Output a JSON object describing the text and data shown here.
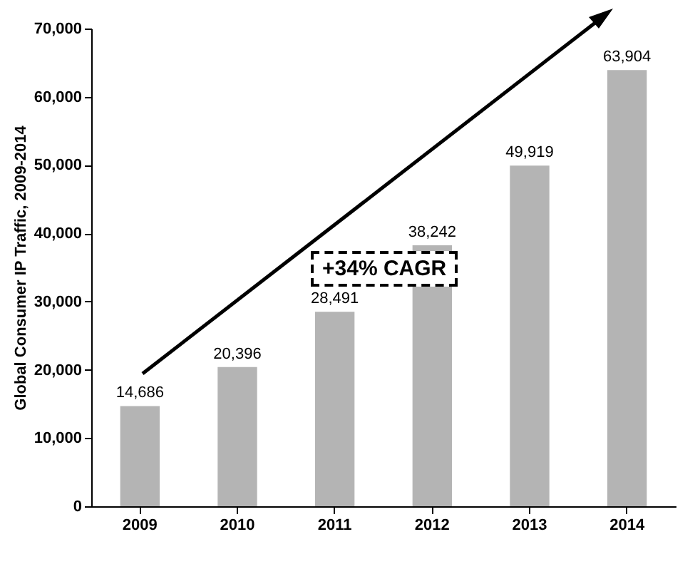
{
  "chart_data": {
    "type": "bar",
    "ylabel": "Global Consumer IP Traffic, 2009-2014",
    "categories": [
      "2009",
      "2010",
      "2011",
      "2012",
      "2013",
      "2014"
    ],
    "values": [
      14686,
      20396,
      28491,
      38242,
      49919,
      63904
    ],
    "color": "#b4b4b4",
    "ylim": [
      0,
      70000
    ],
    "yticks": [
      {
        "value": 0,
        "label": "0"
      },
      {
        "value": 10000,
        "label": "10,000"
      },
      {
        "value": 20000,
        "label": "20,000"
      },
      {
        "value": 30000,
        "label": "30,000"
      },
      {
        "value": 40000,
        "label": "40,000"
      },
      {
        "value": 50000,
        "label": "50,000"
      },
      {
        "value": 60000,
        "label": "60,000"
      },
      {
        "value": 70000,
        "label": "70,000"
      }
    ],
    "grid": false,
    "value_labels": [
      "14,686",
      "20,396",
      "28,491",
      "38,242",
      "49,919",
      "63,904"
    ],
    "annotations": [
      "+34% CAGR"
    ]
  }
}
